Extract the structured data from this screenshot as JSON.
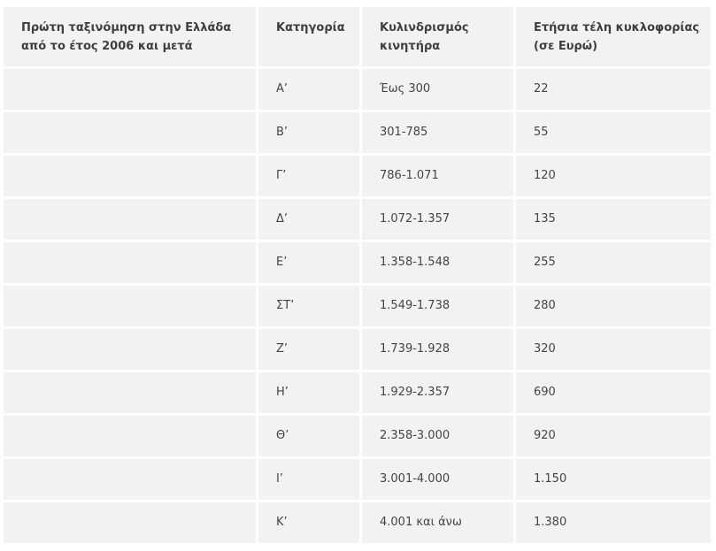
{
  "table": {
    "headers": [
      "Πρώτη ταξινόμηση στην Ελλάδα από το έτος 2006 και μετά",
      "Κατηγορία",
      "Κυλινδρισμός κινητήρα",
      "Ετήσια τέλη κυκλοφορίας (σε Ευρώ)"
    ],
    "rows": [
      [
        "",
        "Α’",
        "Έως 300",
        "22"
      ],
      [
        "",
        "Β’",
        "301-785",
        "55"
      ],
      [
        "",
        "Γ’",
        "786-1.071",
        "120"
      ],
      [
        "",
        "Δ’",
        "1.072-1.357",
        "135"
      ],
      [
        "",
        "Ε’",
        "1.358-1.548",
        "255"
      ],
      [
        "",
        "ΣΤ’",
        "1.549-1.738",
        "280"
      ],
      [
        "",
        "Ζ’",
        "1.739-1.928",
        "320"
      ],
      [
        "",
        "Η’",
        "1.929-2.357",
        "690"
      ],
      [
        "",
        "Θ’",
        "2.358-3.000",
        "920"
      ],
      [
        "",
        "Ι’",
        "3.001-4.000",
        "1.150"
      ],
      [
        "",
        "Κ’",
        "4.001 και άνω",
        "1.380"
      ]
    ]
  }
}
